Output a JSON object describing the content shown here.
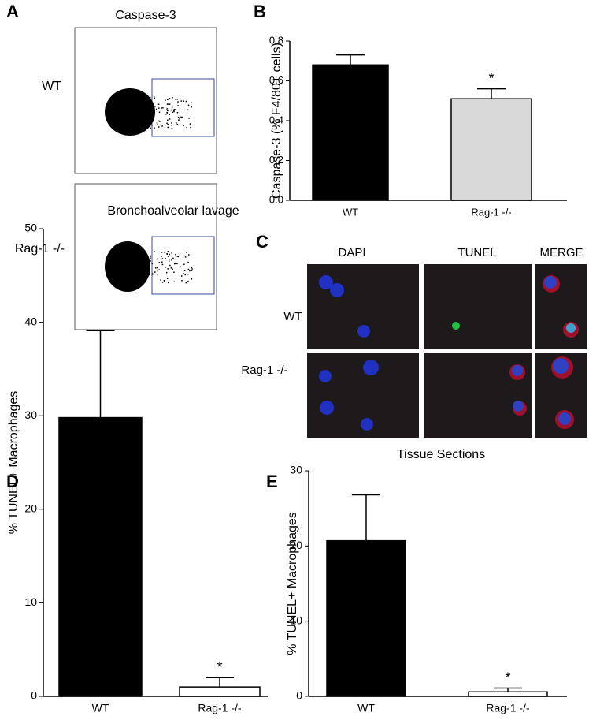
{
  "panel_labels": [
    "A",
    "B",
    "C",
    "D",
    "E"
  ],
  "flow": {
    "title": "Caspase-3",
    "rows": [
      "WT",
      "Rag-1 -/-"
    ]
  },
  "microscopy": {
    "columns": [
      "DAPI",
      "TUNEL",
      "MERGE"
    ],
    "rows": [
      "WT",
      "Rag-1 -/-"
    ]
  },
  "chart_data": [
    {
      "type": "bar",
      "ylabel": "Caspase-3 (% F4/80+ cells)",
      "categories": [
        "WT",
        "Rag-1 -/-"
      ],
      "values": [
        0.68,
        0.51
      ],
      "errors": [
        0.05,
        0.05
      ],
      "colors": [
        "#000000",
        "#d9d9d9"
      ],
      "ylim": [
        0,
        0.8
      ],
      "yticks": [
        {
          "value": 0,
          "label": "0.0"
        },
        {
          "value": 0.2,
          "label": "0.2"
        },
        {
          "value": 0.4,
          "label": "0.4"
        },
        {
          "value": 0.6,
          "label": "0.6"
        },
        {
          "value": 0.8,
          "label": "0.8"
        }
      ],
      "annotation": "*"
    },
    {
      "type": "bar",
      "title": "Bronchoalveolar lavage",
      "ylabel": "% TUNEL+ Macrophages",
      "categories": [
        "WT",
        "Rag-1 -/-"
      ],
      "values": [
        29.8,
        1.0
      ],
      "errors": [
        9.3,
        1.0
      ],
      "colors": [
        "#000000",
        "#ffffff"
      ],
      "ylim": [
        0,
        50
      ],
      "yticks": [
        0,
        10,
        20,
        30,
        40,
        50
      ],
      "annotation": "*"
    },
    {
      "type": "bar",
      "title": "Tissue Sections",
      "ylabel": "% TUNEL+ Macrophages",
      "categories": [
        "WT",
        "Rag-1 -/-"
      ],
      "values": [
        20.7,
        0.6
      ],
      "errors": [
        6.1,
        0.5
      ],
      "colors": [
        "#000000",
        "#ffffff"
      ],
      "ylim": [
        0,
        30
      ],
      "yticks": [
        0,
        10,
        20,
        30
      ],
      "annotation": "*"
    }
  ]
}
